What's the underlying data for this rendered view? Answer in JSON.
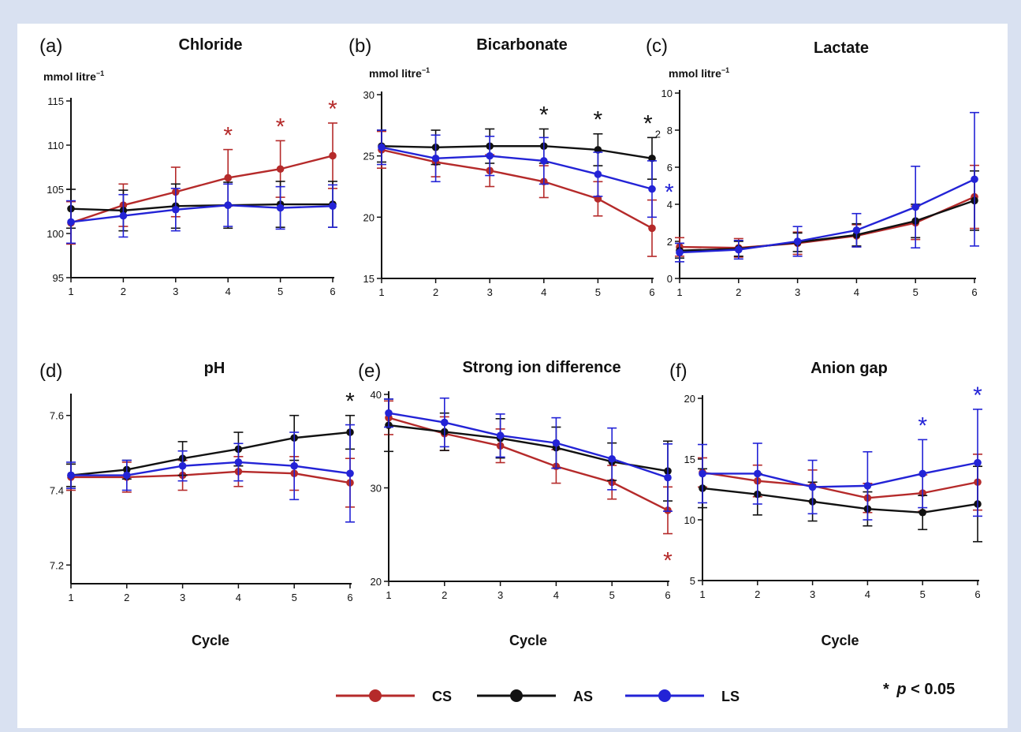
{
  "figure": {
    "colors": {
      "CS": "#b52a2a",
      "AS": "#111111",
      "LS": "#2323d6"
    },
    "legend": {
      "items": [
        {
          "key": "CS",
          "label": "CS"
        },
        {
          "key": "AS",
          "label": "AS"
        },
        {
          "key": "LS",
          "label": "LS"
        }
      ],
      "placement": "bottom",
      "sig_star": "*",
      "sig_p": "p",
      "sig_rest": " < 0.05"
    }
  },
  "chart_data": [
    {
      "type": "line",
      "panel_label": "(a)",
      "title": "Chloride",
      "unit_label": "mmol litre",
      "unit_superscript": "−1",
      "x": [
        1,
        2,
        3,
        4,
        5,
        6
      ],
      "xlabel": "",
      "ylim": [
        95,
        115
      ],
      "yticks": [
        95,
        100,
        105,
        110,
        115
      ],
      "series": [
        {
          "name": "CS",
          "values": [
            101.2,
            103.2,
            104.7,
            106.3,
            107.3,
            108.8
          ],
          "errors": [
            2.4,
            2.4,
            2.8,
            3.2,
            3.2,
            3.7
          ]
        },
        {
          "name": "AS",
          "values": [
            102.8,
            102.6,
            103.1,
            103.2,
            103.3,
            103.3
          ],
          "errors": [
            2.2,
            2.3,
            2.5,
            2.6,
            2.6,
            2.6
          ]
        },
        {
          "name": "LS",
          "values": [
            101.3,
            102.0,
            102.7,
            103.2,
            102.9,
            103.1
          ],
          "errors": [
            2.4,
            2.4,
            2.4,
            2.4,
            2.4,
            2.4
          ]
        }
      ],
      "annotations": [
        {
          "x": 4,
          "series": "CS",
          "text": "*"
        },
        {
          "x": 5,
          "series": "CS",
          "text": "*"
        },
        {
          "x": 6,
          "series": "CS",
          "text": "*"
        }
      ],
      "grid": false
    },
    {
      "type": "line",
      "panel_label": "(b)",
      "title": "Bicarbonate",
      "unit_label": "mmol litre",
      "unit_superscript": "−1",
      "x": [
        1,
        2,
        3,
        4,
        5,
        6
      ],
      "xlabel": "",
      "ylim": [
        15,
        30
      ],
      "yticks": [
        15,
        20,
        25,
        30
      ],
      "series": [
        {
          "name": "CS",
          "values": [
            25.5,
            24.5,
            23.8,
            22.9,
            21.5,
            19.1
          ],
          "errors": [
            1.5,
            1.2,
            1.3,
            1.3,
            1.4,
            2.3
          ]
        },
        {
          "name": "AS",
          "values": [
            25.8,
            25.7,
            25.8,
            25.8,
            25.5,
            24.8
          ],
          "errors": [
            1.3,
            1.4,
            1.4,
            1.4,
            1.3,
            1.7
          ]
        },
        {
          "name": "LS",
          "values": [
            25.7,
            24.8,
            25.0,
            24.6,
            23.5,
            22.3
          ],
          "errors": [
            1.4,
            1.9,
            1.6,
            1.9,
            1.8,
            2.3
          ]
        }
      ],
      "annotations": [
        {
          "x": 4,
          "series": "AS",
          "text": "*"
        },
        {
          "x": 5,
          "series": "AS",
          "text": "*"
        },
        {
          "x": 6,
          "series": "AS",
          "text": "*",
          "sup": "2"
        },
        {
          "x": 6,
          "series": "LS",
          "text": "*",
          "side": "right"
        }
      ],
      "grid": false
    },
    {
      "type": "line",
      "panel_label": "(c)",
      "title": "Lactate",
      "unit_label": "mmol litre",
      "unit_superscript": "−1",
      "x": [
        1,
        2,
        3,
        4,
        5,
        6
      ],
      "xlabel": "",
      "ylim": [
        0,
        10
      ],
      "yticks": [
        0,
        2,
        4,
        6,
        8,
        10
      ],
      "series": [
        {
          "name": "CS",
          "values": [
            1.7,
            1.65,
            1.9,
            2.3,
            3.0,
            4.4
          ],
          "errors": [
            0.5,
            0.5,
            0.6,
            0.6,
            0.9,
            1.7
          ]
        },
        {
          "name": "AS",
          "values": [
            1.5,
            1.6,
            1.95,
            2.35,
            3.1,
            4.2
          ],
          "errors": [
            0.4,
            0.4,
            0.5,
            0.6,
            0.9,
            1.6
          ]
        },
        {
          "name": "LS",
          "values": [
            1.4,
            1.55,
            2.0,
            2.6,
            3.85,
            5.35
          ],
          "errors": [
            0.5,
            0.5,
            0.8,
            0.9,
            2.2,
            3.6
          ]
        }
      ],
      "annotations": [],
      "grid": false
    },
    {
      "type": "line",
      "panel_label": "(d)",
      "title": "pH",
      "unit_label": "",
      "unit_superscript": "",
      "x": [
        1,
        2,
        3,
        4,
        5,
        6
      ],
      "xlabel": "Cycle",
      "ylim": [
        7.15,
        7.65
      ],
      "yticks": [
        7.2,
        7.4,
        7.6
      ],
      "series": [
        {
          "name": "CS",
          "values": [
            7.435,
            7.435,
            7.44,
            7.45,
            7.445,
            7.42
          ],
          "errors": [
            0.035,
            0.04,
            0.04,
            0.04,
            0.045,
            0.065
          ]
        },
        {
          "name": "AS",
          "values": [
            7.44,
            7.455,
            7.485,
            7.51,
            7.54,
            7.555
          ],
          "errors": [
            0.03,
            0.025,
            0.045,
            0.045,
            0.06,
            0.045
          ]
        },
        {
          "name": "LS",
          "values": [
            7.44,
            7.44,
            7.465,
            7.475,
            7.465,
            7.445
          ],
          "errors": [
            0.035,
            0.04,
            0.04,
            0.05,
            0.09,
            0.13
          ]
        }
      ],
      "annotations": [
        {
          "x": 6,
          "series": "AS",
          "text": "*"
        }
      ],
      "grid": false
    },
    {
      "type": "line",
      "panel_label": "(e)",
      "title": "Strong ion difference",
      "unit_label": "",
      "unit_superscript": "",
      "x": [
        1,
        2,
        3,
        4,
        5,
        6
      ],
      "xlabel": "Cycle",
      "ylim": [
        20,
        40
      ],
      "yticks": [
        20,
        30,
        40
      ],
      "series": [
        {
          "name": "CS",
          "values": [
            37.5,
            35.8,
            34.5,
            32.3,
            30.6,
            27.6
          ],
          "errors": [
            1.8,
            1.8,
            1.8,
            1.8,
            1.8,
            2.5
          ]
        },
        {
          "name": "AS",
          "values": [
            36.7,
            36.0,
            35.3,
            34.3,
            32.8,
            31.8
          ],
          "errors": [
            2.8,
            2.0,
            2.1,
            2.2,
            2.0,
            3.2
          ]
        },
        {
          "name": "LS",
          "values": [
            38.0,
            37.0,
            35.6,
            34.8,
            33.1,
            31.1
          ],
          "errors": [
            1.5,
            2.6,
            2.3,
            2.7,
            3.3,
            3.6
          ]
        }
      ],
      "annotations": [
        {
          "x": 6,
          "series": "CS",
          "text": "*",
          "side": "below"
        }
      ],
      "grid": false
    },
    {
      "type": "line",
      "panel_label": "(f)",
      "title": "Anion gap",
      "unit_label": "",
      "unit_superscript": "",
      "x": [
        1,
        2,
        3,
        4,
        5,
        6
      ],
      "xlabel": "Cycle",
      "ylim": [
        5,
        20
      ],
      "yticks": [
        5,
        10,
        15,
        20
      ],
      "series": [
        {
          "name": "CS",
          "values": [
            13.9,
            13.2,
            12.8,
            11.8,
            12.2,
            13.1
          ],
          "errors": [
            1.2,
            1.3,
            1.3,
            1.2,
            1.5,
            2.3
          ]
        },
        {
          "name": "AS",
          "values": [
            12.6,
            12.1,
            11.5,
            10.9,
            10.6,
            11.3
          ],
          "errors": [
            1.6,
            1.7,
            1.6,
            1.4,
            1.4,
            3.1
          ]
        },
        {
          "name": "LS",
          "values": [
            13.8,
            13.8,
            12.7,
            12.8,
            13.8,
            14.7
          ],
          "errors": [
            2.4,
            2.5,
            2.2,
            2.8,
            2.8,
            4.4
          ]
        }
      ],
      "annotations": [
        {
          "x": 5,
          "series": "LS",
          "text": "*"
        },
        {
          "x": 6,
          "series": "LS",
          "text": "*"
        }
      ],
      "grid": false
    }
  ]
}
